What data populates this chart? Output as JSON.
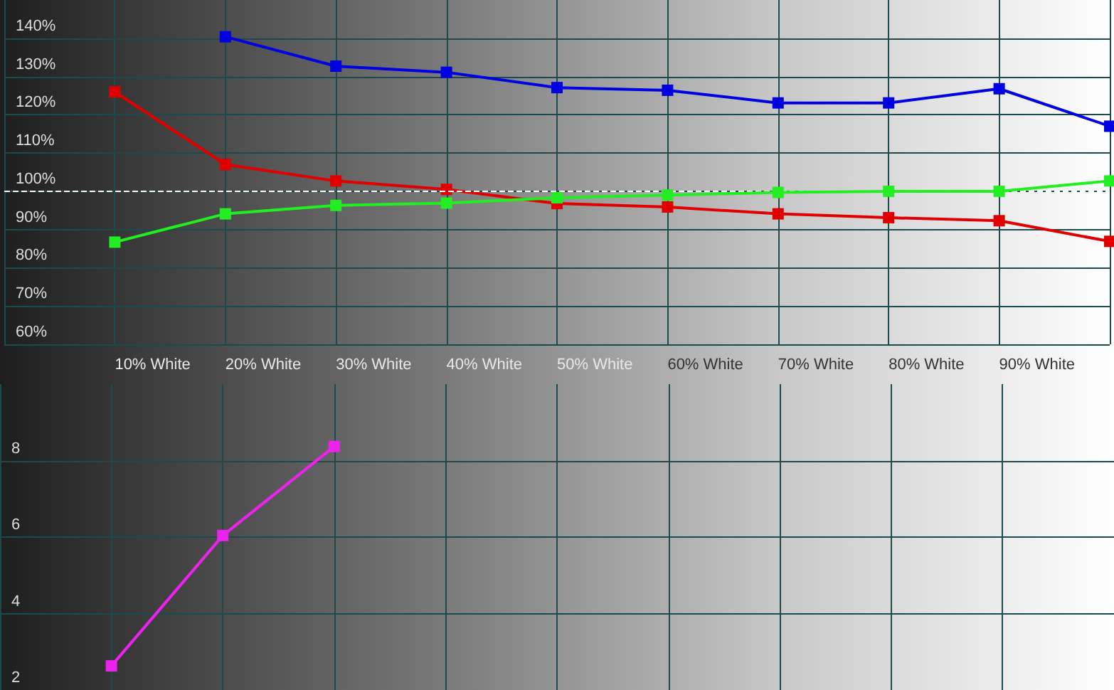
{
  "chart_data": [
    {
      "type": "line",
      "categories": [
        null,
        "10% White",
        "20% White",
        "30% White",
        "40% White",
        "50% White",
        "60% White",
        "70% White",
        "80% White",
        "90% White",
        null
      ],
      "series": [
        {
          "color": "#0000e0",
          "values": [
            null,
            null,
            140.4,
            132.7,
            131.1,
            127.1,
            126.4,
            123.1,
            123.1,
            126.8,
            117.0
          ]
        },
        {
          "color": "#e00000",
          "values": [
            null,
            126.0,
            107.0,
            102.7,
            100.5,
            96.8,
            95.9,
            94.1,
            93.1,
            92.3,
            86.9
          ]
        },
        {
          "color": "#22ee22",
          "values": [
            null,
            86.7,
            94.1,
            96.3,
            96.9,
            98.3,
            99.0,
            99.7,
            100,
            100,
            102.7
          ]
        }
      ],
      "ylim": [
        60,
        150
      ],
      "yticks": [
        {
          "value": 60,
          "label": "60%"
        },
        {
          "value": 70,
          "label": "70%"
        },
        {
          "value": 80,
          "label": "80%"
        },
        {
          "value": 90,
          "label": "90%"
        },
        {
          "value": 100,
          "label": "100%"
        },
        {
          "value": 110,
          "label": "110%"
        },
        {
          "value": 120,
          "label": "120%"
        },
        {
          "value": 130,
          "label": "130%"
        },
        {
          "value": 140,
          "label": "140%"
        }
      ],
      "ref_lines": [
        {
          "axis": "y",
          "value": 100,
          "color": "#ffffff",
          "line_style": "dashed"
        }
      ],
      "grid": true,
      "marker": "square",
      "line_style": "solid"
    },
    {
      "type": "line",
      "categories": [
        null,
        null,
        null,
        null,
        null,
        null,
        null,
        null,
        null,
        null,
        null
      ],
      "series": [
        {
          "color": "#ee22ee",
          "values": [
            null,
            2.63,
            6.04,
            8.37,
            null,
            null,
            null,
            null,
            null,
            null,
            null
          ]
        }
      ],
      "ylim": [
        2,
        10
      ],
      "yticks": [
        2,
        4,
        6,
        8
      ],
      "tick_labels": "y",
      "grid": true,
      "marker": "square",
      "line_style": "solid"
    }
  ]
}
